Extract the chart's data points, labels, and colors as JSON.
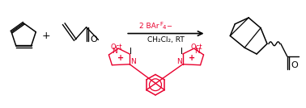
{
  "bg_color": "#ffffff",
  "red_color": "#e8002d",
  "black_color": "#000000",
  "reagent_line2": "CH₂Cl₂, RT",
  "plus_sign": "+",
  "label_O": "O",
  "label_I": "I",
  "label_Oct": "Oct",
  "label_N": "N",
  "label_plus_charge": "+"
}
